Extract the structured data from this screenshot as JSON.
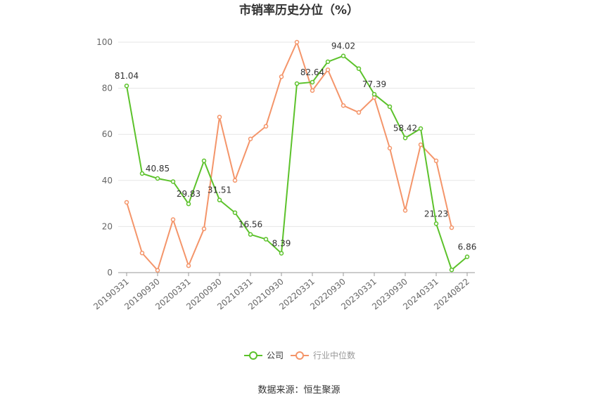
{
  "chart_data": {
    "type": "line",
    "title": "市销率历史分位（%）",
    "ylim": [
      0,
      100
    ],
    "yticks": [
      0,
      20,
      40,
      60,
      80,
      100
    ],
    "grid": "horizontal",
    "legend_position": "bottom",
    "source": "数据来源：恒生聚源",
    "x_tick_labels": [
      "20190331",
      "20190930",
      "20200331",
      "20200930",
      "20210331",
      "20210930",
      "20220331",
      "20220930",
      "20230331",
      "20230930",
      "20240331",
      "20240822"
    ],
    "x_points": 23,
    "series": [
      {
        "name": "公司",
        "color": "#5cc22b",
        "values": [
          81.04,
          43.0,
          40.85,
          39.5,
          29.83,
          48.5,
          31.51,
          26.0,
          16.56,
          14.5,
          8.39,
          82.0,
          82.64,
          91.5,
          94.02,
          88.5,
          77.39,
          72.0,
          58.42,
          62.5,
          21.23,
          1.2,
          6.86
        ],
        "labels": {
          "0": "81.04",
          "2": "40.85",
          "4": "29.83",
          "6": "31.51",
          "8": "16.56",
          "10": "8.39",
          "12": "82.64",
          "14": "94.02",
          "16": "77.39",
          "18": "58.42",
          "20": "21.23",
          "22": "6.86"
        }
      },
      {
        "name": "行业中位数",
        "color": "#f4956a",
        "values": [
          30.5,
          8.5,
          1.0,
          23.0,
          3.0,
          19.0,
          67.5,
          40.0,
          58.0,
          63.5,
          85.0,
          100.0,
          79.0,
          88.0,
          72.5,
          69.5,
          76.0,
          54.0,
          27.0,
          55.5,
          48.5,
          19.5,
          null
        ]
      }
    ]
  }
}
